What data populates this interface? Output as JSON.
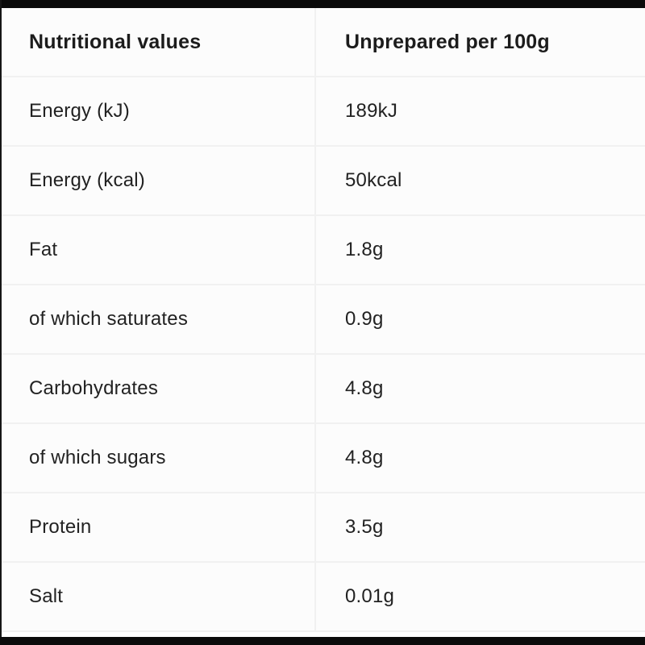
{
  "table": {
    "header": {
      "col1": "Nutritional values",
      "col2": "Unprepared per 100g"
    },
    "rows": [
      {
        "label": "Energy (kJ)",
        "value": "189kJ"
      },
      {
        "label": "Energy (kcal)",
        "value": "50kcal"
      },
      {
        "label": "Fat",
        "value": "1.8g"
      },
      {
        "label": "of which saturates",
        "value": "0.9g"
      },
      {
        "label": "Carbohydrates",
        "value": "4.8g"
      },
      {
        "label": "of which sugars",
        "value": "4.8g"
      },
      {
        "label": "Protein",
        "value": "3.5g"
      },
      {
        "label": "Salt",
        "value": "0.01g"
      }
    ]
  },
  "colors": {
    "letterbox_bar": "#0b0b0b",
    "table_background": "#fcfcfc",
    "divider": "#f1f1f1",
    "header_text": "#1c1c1c",
    "body_text": "#222222"
  }
}
